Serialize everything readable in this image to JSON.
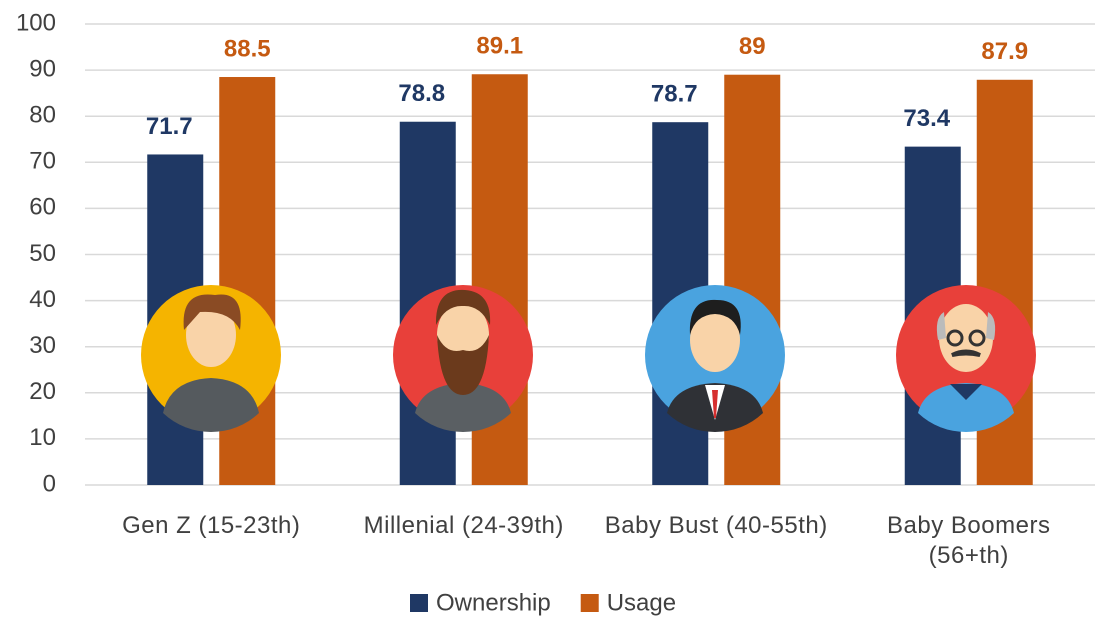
{
  "chart_data": {
    "type": "bar",
    "categories": [
      "Gen Z (15-23th)",
      "Millenial (24-39th)",
      "Baby Bust (40-55th)",
      "Baby Boomers (56+th)"
    ],
    "series": [
      {
        "name": "Ownership",
        "color": "#1f3864",
        "values": [
          71.7,
          78.8,
          78.7,
          73.4
        ]
      },
      {
        "name": "Usage",
        "color": "#c55a11",
        "values": [
          88.5,
          89.1,
          89,
          87.9
        ]
      }
    ],
    "ylim": [
      0,
      100
    ],
    "yticks": [
      0,
      10,
      20,
      30,
      40,
      50,
      60,
      70,
      80,
      90,
      100
    ],
    "grid": true,
    "legend": "bottom"
  }
}
